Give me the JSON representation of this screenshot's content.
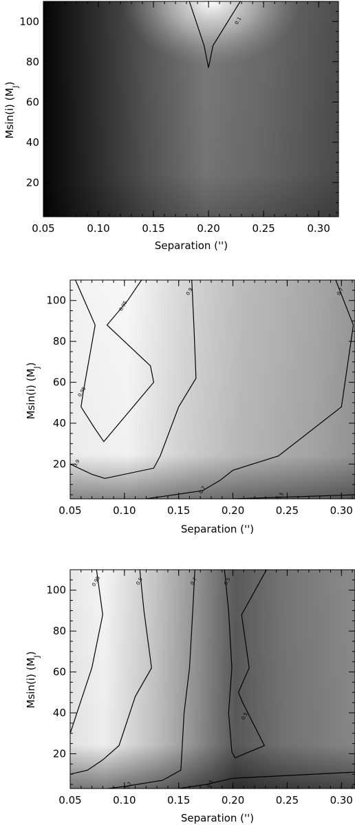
{
  "chart_data": [
    {
      "type": "heatmap",
      "xlabel": "Separation ('')",
      "ylabel": "Msin(i) (M_J)",
      "ylabel_main": "Msin(i)  (M",
      "ylabel_sub": "J",
      "ylabel_close": ")",
      "xlim": [
        0.05,
        0.318
      ],
      "ylim": [
        3,
        110
      ],
      "xticks": [
        0.05,
        0.1,
        0.15,
        0.2,
        0.25,
        0.3
      ],
      "xtick_labels": [
        "0.05",
        "0.10",
        "0.15",
        "0.20",
        "0.25",
        "0.30"
      ],
      "yticks": [
        20,
        40,
        60,
        80,
        100
      ],
      "ytick_labels": [
        "20",
        "40",
        "60",
        "80",
        "100"
      ],
      "contours": [
        {
          "label": "0.1",
          "label_at": [
            0.228,
            100
          ],
          "points": [
            [
              0.182,
              111
            ],
            [
              0.196,
              88
            ],
            [
              0.2,
              77
            ],
            [
              0.204,
              88
            ],
            [
              0.23,
              111
            ]
          ]
        }
      ]
    },
    {
      "type": "heatmap",
      "xlabel": "Separation ('')",
      "ylabel": "Msin(i) (M_J)",
      "ylabel_main": "Msin(i)  (M",
      "ylabel_sub": "J",
      "ylabel_close": ")",
      "xlim": [
        0.05,
        0.3125
      ],
      "ylim": [
        3,
        110
      ],
      "xticks": [
        0.05,
        0.1,
        0.15,
        0.2,
        0.25,
        0.3
      ],
      "xtick_labels": [
        "0.05",
        "0.10",
        "0.15",
        "0.20",
        "0.25",
        "0.30"
      ],
      "yticks": [
        20,
        40,
        60,
        80,
        100
      ],
      "ytick_labels": [
        "20",
        "40",
        "60",
        "80",
        "100"
      ],
      "contours": [
        {
          "label": "0.95",
          "label_at": [
            0.062,
            55
          ],
          "points": [
            [
              0.054,
              111
            ],
            [
              0.073,
              88
            ],
            [
              0.062,
              55
            ],
            [
              0.06,
              48
            ],
            [
              0.072,
              38
            ],
            [
              0.081,
              31
            ],
            [
              0.127,
              60
            ],
            [
              0.124,
              68
            ],
            [
              0.084,
              88
            ],
            [
              0.103,
              100
            ],
            [
              0.117,
              111
            ]
          ]
        },
        {
          "label": "0.95",
          "label_at": [
            0.1,
            97
          ],
          "points": []
        },
        {
          "label": "0.9",
          "label_at": [
            0.161,
            104
          ],
          "points": [
            [
              0.162,
              111
            ],
            [
              0.164,
              88
            ],
            [
              0.166,
              62
            ],
            [
              0.15,
              48
            ],
            [
              0.133,
              24
            ],
            [
              0.127,
              18
            ],
            [
              0.082,
              13
            ],
            [
              0.07,
              15
            ],
            [
              0.05,
              20
            ]
          ]
        },
        {
          "label": "0.9",
          "label_at": [
            0.057,
            20
          ],
          "points": []
        },
        {
          "label": "0.7",
          "label_at": [
            0.3,
            104
          ],
          "points": [
            [
              0.294,
              111
            ],
            [
              0.311,
              88
            ],
            [
              0.3,
              48
            ],
            [
              0.242,
              24
            ],
            [
              0.2,
              17
            ],
            [
              0.188,
              12
            ],
            [
              0.172,
              7
            ],
            [
              0.12,
              3
            ]
          ]
        },
        {
          "label": "0.7",
          "label_at": [
            0.173,
            7
          ],
          "points": []
        },
        {
          "label": "0.5",
          "label_at": [
            0.245,
            4
          ],
          "points": [
            [
              0.2,
              3
            ],
            [
              0.312,
              5
            ]
          ]
        }
      ]
    },
    {
      "type": "heatmap",
      "xlabel": "Separation ('')",
      "ylabel": "Msin(i) (M_J)",
      "ylabel_main": "Msin(i)  (M",
      "ylabel_sub": "J",
      "ylabel_close": ")",
      "xlim": [
        0.05,
        0.3125
      ],
      "ylim": [
        3,
        110
      ],
      "xticks": [
        0.05,
        0.1,
        0.15,
        0.2,
        0.25,
        0.3
      ],
      "xtick_labels": [
        "0.05",
        "0.10",
        "0.15",
        "0.20",
        "0.25",
        "0.30"
      ],
      "yticks": [
        20,
        40,
        60,
        80,
        100
      ],
      "ytick_labels": [
        "20",
        "40",
        "60",
        "80",
        "100"
      ],
      "contours": [
        {
          "label": "0.95",
          "label_at": [
            0.075,
            104
          ],
          "points": [
            [
              0.074,
              111
            ],
            [
              0.08,
              88
            ],
            [
              0.07,
              62
            ],
            [
              0.05,
              30
            ]
          ]
        },
        {
          "label": "0.9",
          "label_at": [
            0.115,
            104
          ],
          "points": [
            [
              0.114,
              111
            ],
            [
              0.118,
              90
            ],
            [
              0.125,
              62
            ],
            [
              0.11,
              48
            ],
            [
              0.095,
              24
            ],
            [
              0.08,
              17
            ],
            [
              0.066,
              12
            ],
            [
              0.05,
              10
            ]
          ]
        },
        {
          "label": "0.7",
          "label_at": [
            0.165,
            104
          ],
          "points": [
            [
              0.165,
              111
            ],
            [
              0.163,
              90
            ],
            [
              0.16,
              62
            ],
            [
              0.155,
              40
            ],
            [
              0.152,
              12
            ],
            [
              0.135,
              7
            ],
            [
              0.1,
              4
            ],
            [
              0.085,
              3
            ]
          ]
        },
        {
          "label": "0.7",
          "label_at": [
            0.105,
            4
          ],
          "points": []
        },
        {
          "label": "0.5",
          "label_at": [
            0.196,
            104
          ],
          "points": [
            [
              0.192,
              111
            ],
            [
              0.196,
              90
            ],
            [
              0.199,
              62
            ],
            [
              0.196,
              40
            ],
            [
              0.199,
              21
            ],
            [
              0.202,
              18
            ],
            [
              0.229,
              24
            ],
            [
              0.209,
              45
            ],
            [
              0.205,
              50
            ],
            [
              0.215,
              62
            ],
            [
              0.208,
              88
            ],
            [
              0.232,
              111
            ]
          ]
        },
        {
          "label": "0.5",
          "label_at": [
            0.212,
            38
          ],
          "points": []
        },
        {
          "label": "0.5",
          "label_at": [
            0.18,
            5
          ],
          "points": [
            [
              0.15,
              3
            ],
            [
              0.175,
              5
            ],
            [
              0.2,
              8
            ],
            [
              0.312,
              11
            ]
          ]
        }
      ]
    }
  ]
}
